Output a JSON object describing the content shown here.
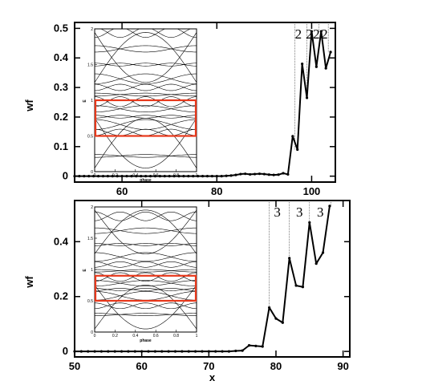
{
  "chart_data": [
    {
      "type": "line",
      "xlabel": "",
      "ylabel": "wf",
      "xlim": [
        50,
        105
      ],
      "ylim": [
        -0.02,
        0.52
      ],
      "xticks": [
        "60",
        "80",
        "100"
      ],
      "yticks": [
        "0",
        "0.1",
        "0.2",
        "0.3",
        "0.4",
        "0.5"
      ],
      "series": [
        {
          "x": [
            50,
            51,
            52,
            53,
            54,
            55,
            56,
            57,
            58,
            59,
            60,
            61,
            62,
            63,
            64,
            65,
            66,
            67,
            68,
            69,
            70,
            71,
            72,
            73,
            74,
            75,
            76,
            77,
            78,
            79,
            80,
            81,
            82,
            83,
            84,
            85,
            86,
            87,
            88,
            89,
            90,
            91,
            92,
            93,
            94,
            95,
            96,
            97,
            98,
            99,
            100,
            101,
            102,
            103,
            104
          ],
          "y": [
            0,
            0,
            0,
            0,
            0,
            0,
            0,
            0,
            0,
            0,
            0,
            0,
            0,
            0,
            0,
            0,
            0,
            0,
            0,
            0,
            0,
            0,
            0,
            0,
            0,
            0,
            0,
            0,
            0,
            0,
            0,
            0,
            0.001,
            0.002,
            0.004,
            0.007,
            0.008,
            0.006,
            0.007,
            0.008,
            0.007,
            0.005,
            0.004,
            0.005,
            0.01,
            0.006,
            0.135,
            0.09,
            0.38,
            0.265,
            0.49,
            0.37,
            0.49,
            0.365,
            0.42
          ]
        }
      ],
      "annotations": [
        {
          "text": "2",
          "x": 97.2
        },
        {
          "text": "2",
          "x": 99.5
        },
        {
          "text": "2",
          "x": 101.0
        },
        {
          "text": "2",
          "x": 102.7
        }
      ],
      "vlines": [
        96.5,
        99,
        101.5,
        103.5
      ],
      "inset": {
        "xlabel": "phase",
        "ylabel": "E",
        "xticks": [
          "0",
          "0.2",
          "0.4",
          "0.6",
          "0.8",
          "1"
        ],
        "yticks": [
          "0",
          "0.5",
          "1",
          "1.5",
          "2"
        ],
        "highlight_color": "#e8381b"
      }
    },
    {
      "type": "line",
      "xlabel": "x",
      "ylabel": "wf",
      "xlim": [
        50,
        91
      ],
      "ylim": [
        -0.02,
        0.55
      ],
      "xticks": [
        "50",
        "60",
        "70",
        "80",
        "90"
      ],
      "yticks": [
        "0",
        "0.2",
        "0.4"
      ],
      "series": [
        {
          "x": [
            50,
            51,
            52,
            53,
            54,
            55,
            56,
            57,
            58,
            59,
            60,
            61,
            62,
            63,
            64,
            65,
            66,
            67,
            68,
            69,
            70,
            71,
            72,
            73,
            74,
            75,
            76,
            77,
            78,
            79,
            80,
            81,
            82,
            83,
            84,
            85,
            86,
            87,
            88
          ],
          "y": [
            0,
            0,
            0,
            0,
            0,
            0,
            0,
            0,
            0,
            0,
            0,
            0,
            0,
            0,
            0,
            0,
            0,
            0,
            0,
            0,
            0,
            0,
            0,
            0,
            0.002,
            0.003,
            0.022,
            0.02,
            0.018,
            0.16,
            0.12,
            0.105,
            0.34,
            0.24,
            0.235,
            0.47,
            0.32,
            0.36,
            0.53
          ]
        }
      ],
      "annotations": [
        {
          "text": "3",
          "x": 80.2
        },
        {
          "text": "3",
          "x": 83.5
        },
        {
          "text": "3",
          "x": 86.6
        }
      ],
      "vlines": [
        79,
        82,
        85,
        88.2
      ],
      "inset": {
        "xlabel": "phase",
        "ylabel": "E",
        "xticks": [
          "0",
          "0.2",
          "0.4",
          "0.6",
          "0.8",
          "1"
        ],
        "yticks": [
          "0",
          "0.5",
          "1",
          "1.5",
          "2"
        ],
        "highlight_color": "#e8381b"
      }
    }
  ]
}
